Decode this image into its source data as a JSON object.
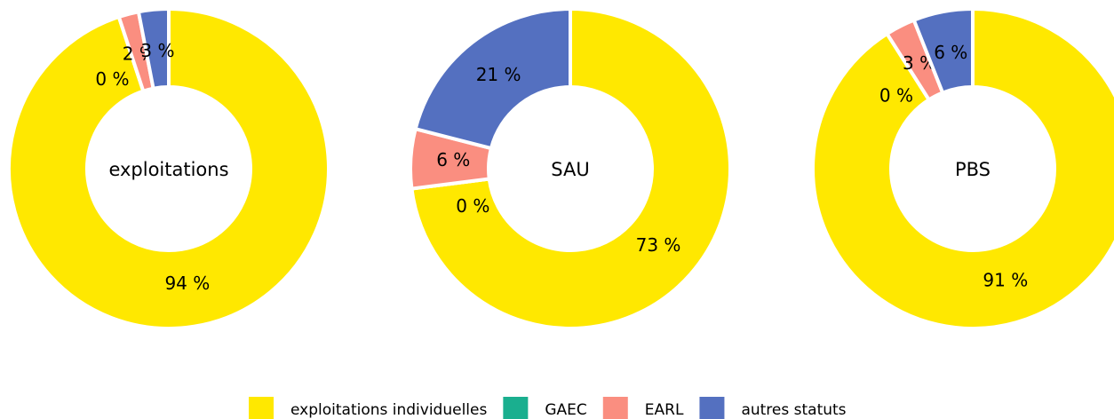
{
  "chart_data": [
    {
      "type": "pie",
      "title": "exploitations",
      "values": [
        94,
        0,
        2,
        3
      ],
      "value_labels": [
        "94 %",
        "0 %",
        "2 %",
        "3 %"
      ]
    },
    {
      "type": "pie",
      "title": "SAU",
      "values": [
        73,
        0,
        6,
        21
      ],
      "value_labels": [
        "73 %",
        "0 %",
        "6 %",
        "21 %"
      ]
    },
    {
      "type": "pie",
      "title": "PBS",
      "values": [
        91,
        0,
        3,
        6
      ],
      "value_labels": [
        "91 %",
        "0 %",
        "3 %",
        "6 %"
      ]
    }
  ],
  "legend": {
    "labels": [
      "exploitations individuelles",
      "GAEC",
      "EARL",
      "autres statuts"
    ],
    "colors": [
      "#FFE800",
      "#1AAF8F",
      "#FA8E80",
      "#5470C0"
    ]
  }
}
